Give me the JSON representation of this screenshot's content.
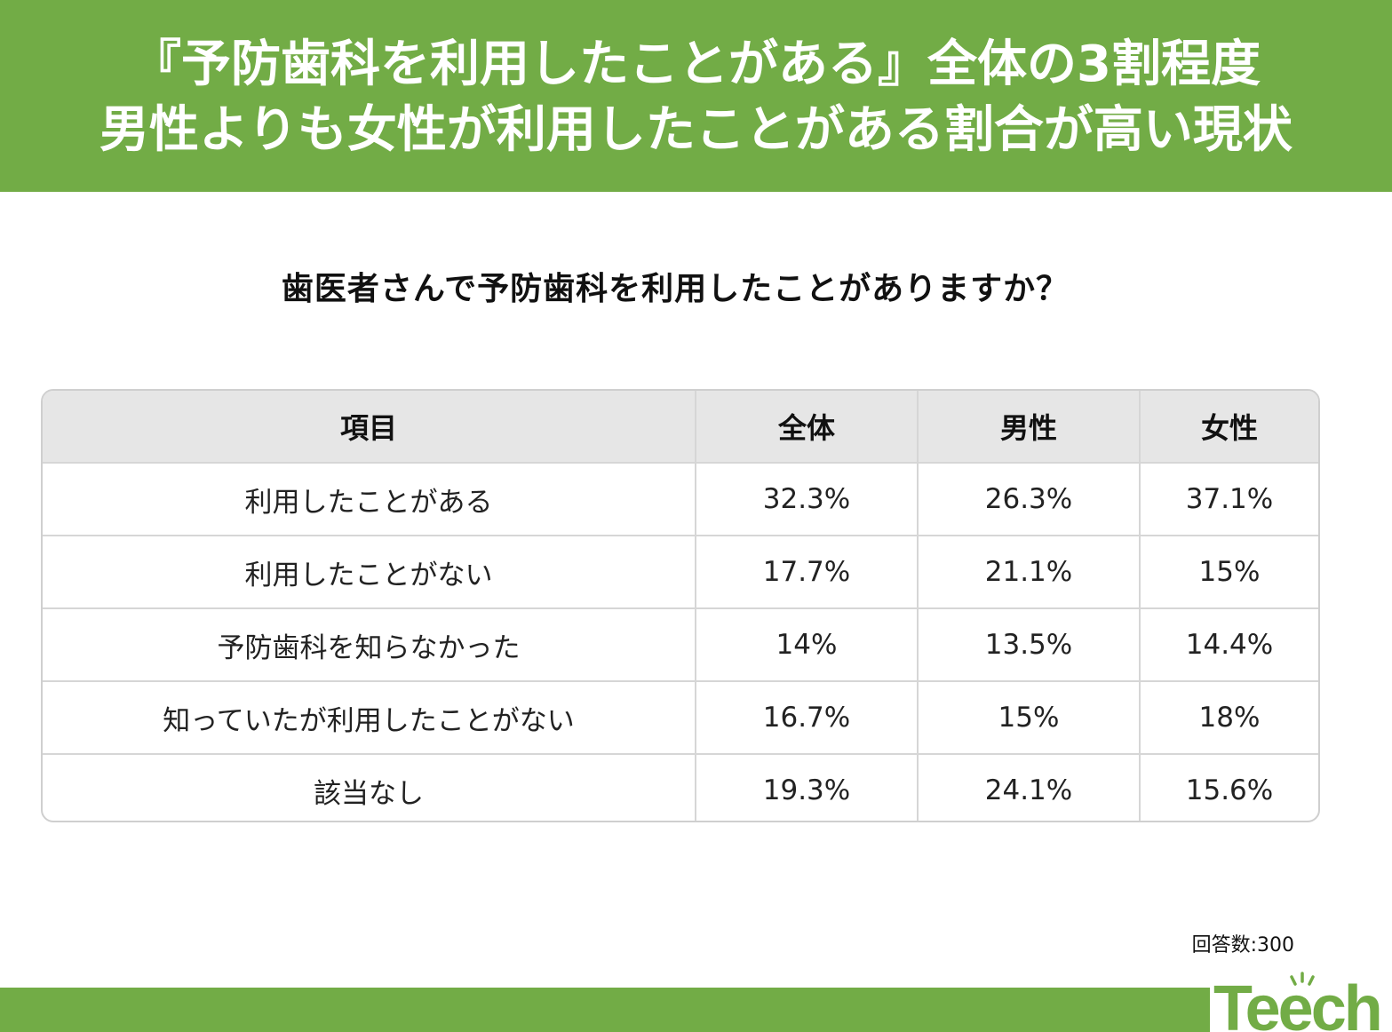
{
  "header": {
    "title_line1": "『予防歯科を利用したことがある』全体の3割程度",
    "title_line2": "男性よりも女性が利用したことがある割合が高い現状"
  },
  "question": "歯医者さんで予防歯科を利用したことがありますか？",
  "colors": {
    "accent": "#72ac46",
    "header_row": "#e6e6e6"
  },
  "chart_data": {
    "type": "table",
    "columns": [
      "項目",
      "全体",
      "男性",
      "女性"
    ],
    "rows": [
      [
        "利用したことがある",
        "32.3%",
        "26.3%",
        "37.1%"
      ],
      [
        "利用したことがない",
        "17.7%",
        "21.1%",
        "15%"
      ],
      [
        "予防歯科を知らなかった",
        "14%",
        "13.5%",
        "14.4%"
      ],
      [
        "知っていたが利用したことがない",
        "16.7%",
        "15%",
        "18%"
      ],
      [
        "該当なし",
        "19.3%",
        "24.1%",
        "15.6%"
      ]
    ]
  },
  "note": "回答数:300",
  "logo": {
    "text": "Teech",
    "icon": "teech-logo"
  }
}
